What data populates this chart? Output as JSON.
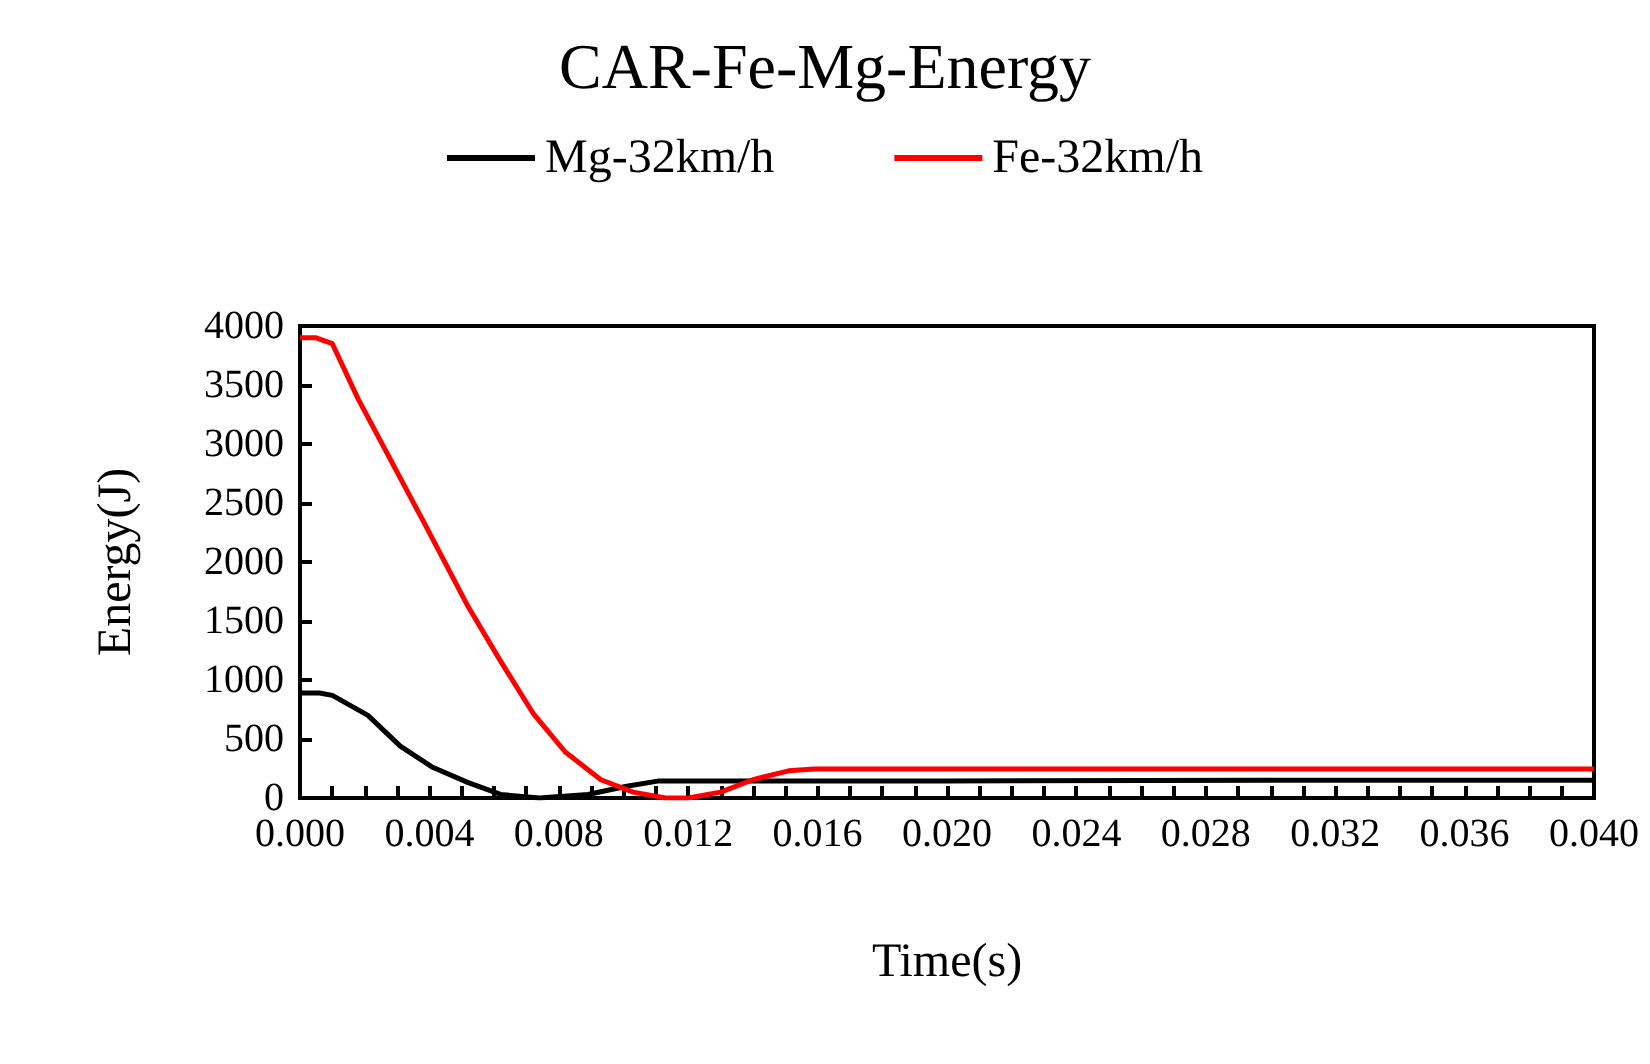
{
  "chart_data": {
    "type": "line",
    "title": "CAR-Fe-Mg-Energy",
    "xlabel": "Time(s)",
    "ylabel": "Energy(J)",
    "legend": "top",
    "grid": false,
    "marker": "none",
    "line_style": "solid",
    "xlim": [
      0,
      0.04
    ],
    "ylim": [
      0,
      4000
    ],
    "xticks": [
      {
        "value": 0,
        "label": "0.000"
      },
      {
        "value": 0.001,
        "label": null
      },
      {
        "value": 0.002,
        "label": null
      },
      {
        "value": 0.003,
        "label": null
      },
      {
        "value": 0.004,
        "label": "0.004"
      },
      {
        "value": 0.005,
        "label": null
      },
      {
        "value": 0.006,
        "label": null
      },
      {
        "value": 0.007,
        "label": null
      },
      {
        "value": 0.008,
        "label": "0.008"
      },
      {
        "value": 0.009,
        "label": null
      },
      {
        "value": 0.01,
        "label": null
      },
      {
        "value": 0.011,
        "label": null
      },
      {
        "value": 0.012,
        "label": "0.012"
      },
      {
        "value": 0.013,
        "label": null
      },
      {
        "value": 0.014,
        "label": null
      },
      {
        "value": 0.015,
        "label": null
      },
      {
        "value": 0.016,
        "label": "0.016"
      },
      {
        "value": 0.017,
        "label": null
      },
      {
        "value": 0.018,
        "label": null
      },
      {
        "value": 0.019,
        "label": null
      },
      {
        "value": 0.02,
        "label": "0.020"
      },
      {
        "value": 0.021,
        "label": null
      },
      {
        "value": 0.022,
        "label": null
      },
      {
        "value": 0.023,
        "label": null
      },
      {
        "value": 0.024,
        "label": "0.024"
      },
      {
        "value": 0.025,
        "label": null
      },
      {
        "value": 0.026,
        "label": null
      },
      {
        "value": 0.027,
        "label": null
      },
      {
        "value": 0.028,
        "label": "0.028"
      },
      {
        "value": 0.029,
        "label": null
      },
      {
        "value": 0.03,
        "label": null
      },
      {
        "value": 0.031,
        "label": null
      },
      {
        "value": 0.032,
        "label": "0.032"
      },
      {
        "value": 0.033,
        "label": null
      },
      {
        "value": 0.034,
        "label": null
      },
      {
        "value": 0.035,
        "label": null
      },
      {
        "value": 0.036,
        "label": "0.036"
      },
      {
        "value": 0.037,
        "label": null
      },
      {
        "value": 0.038,
        "label": null
      },
      {
        "value": 0.039,
        "label": null
      },
      {
        "value": 0.04,
        "label": "0.040"
      }
    ],
    "yticks": [
      0,
      500,
      1000,
      1500,
      2000,
      2500,
      3000,
      3500,
      4000
    ],
    "series": [
      {
        "name": "Mg-32km/h",
        "color": "#000000",
        "x": [
          0,
          0.0006,
          0.001,
          0.0021,
          0.0031,
          0.0041,
          0.0052,
          0.0062,
          0.0074,
          0.0089,
          0.0101,
          0.0111,
          0.0126,
          0.02,
          0.03,
          0.04
        ],
        "values": [
          890,
          890,
          870,
          700,
          440,
          260,
          130,
          30,
          0,
          30,
          100,
          145,
          145,
          145,
          150,
          150
        ]
      },
      {
        "name": "Fe-32km/h",
        "color": "#ff0000",
        "x": [
          0,
          0.0005,
          0.001,
          0.0018,
          0.0039,
          0.0052,
          0.0062,
          0.0072,
          0.0082,
          0.0093,
          0.0103,
          0.0113,
          0.012,
          0.013,
          0.014,
          0.0151,
          0.0159,
          0.02,
          0.03,
          0.04
        ],
        "values": [
          3900,
          3900,
          3850,
          3380,
          2300,
          1620,
          1160,
          720,
          390,
          155,
          50,
          0,
          0,
          50,
          155,
          230,
          245,
          245,
          245,
          245
        ]
      }
    ]
  }
}
